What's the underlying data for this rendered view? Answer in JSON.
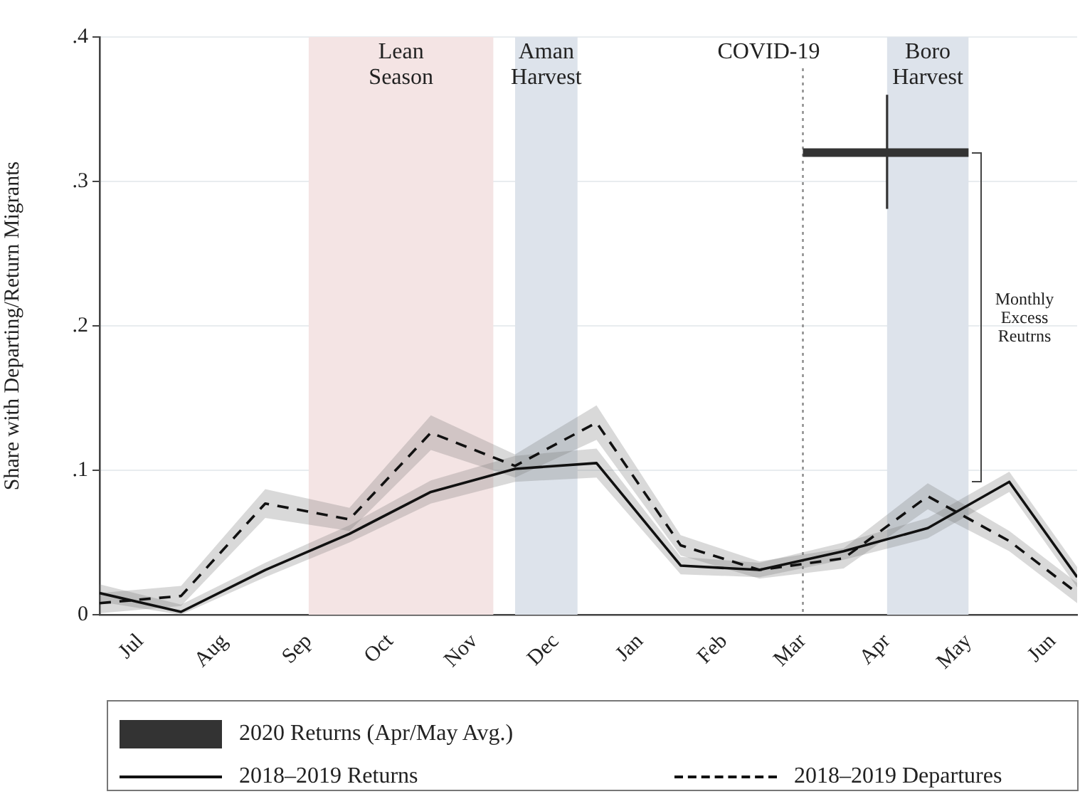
{
  "chart_data": {
    "type": "line",
    "ylabel": "Share with Departing/Return Migrants",
    "xlim": [
      "2019-06-16",
      "2020-06-10"
    ],
    "ylim": [
      0,
      0.4
    ],
    "xticks": [
      {
        "value": "2019-07-01",
        "label": "Jul"
      },
      {
        "value": "2019-08-01",
        "label": "Aug"
      },
      {
        "value": "2019-09-01",
        "label": "Sep"
      },
      {
        "value": "2019-10-01",
        "label": "Oct"
      },
      {
        "value": "2019-11-01",
        "label": "Nov"
      },
      {
        "value": "2019-12-01",
        "label": "Dec"
      },
      {
        "value": "2020-01-01",
        "label": "Jan"
      },
      {
        "value": "2020-02-01",
        "label": "Feb"
      },
      {
        "value": "2020-03-01",
        "label": "Mar"
      },
      {
        "value": "2020-04-01",
        "label": "Apr"
      },
      {
        "value": "2020-05-01",
        "label": "May"
      },
      {
        "value": "2020-06-01",
        "label": "Jun"
      }
    ],
    "yticks": [
      {
        "value": 0,
        "label": "0"
      },
      {
        "value": 0.1,
        "label": ".1"
      },
      {
        "value": 0.2,
        "label": ".2"
      },
      {
        "value": 0.3,
        "label": ".3"
      },
      {
        "value": 0.4,
        "label": ".4"
      }
    ],
    "x": [
      "2019-06-16",
      "2019-07-16",
      "2019-08-16",
      "2019-09-16",
      "2019-10-16",
      "2019-11-16",
      "2019-12-16",
      "2020-01-16",
      "2020-02-14",
      "2020-03-16",
      "2020-04-16",
      "2020-05-16",
      "2020-06-10"
    ],
    "series": [
      {
        "name": "2020 Returns (Apr/May Avg.)",
        "color": "#333333",
        "line_style": "solid",
        "x": [
          "2020-03-01",
          "2020-04-01",
          "2020-05-01"
        ],
        "values": [
          0.32,
          0.32,
          0.32
        ],
        "errors": [
          null,
          [
            0.281,
            0.36
          ],
          null
        ]
      },
      {
        "name": "2018–2019 Returns",
        "color": "#111111",
        "line_style": "solid",
        "values": [
          0.015,
          0.002,
          0.031,
          0.056,
          0.085,
          0.101,
          0.105,
          0.034,
          0.031,
          0.044,
          0.06,
          0.092,
          0.026
        ],
        "lower": [
          0.009,
          0,
          0.026,
          0.05,
          0.077,
          0.092,
          0.095,
          0.028,
          0.026,
          0.038,
          0.053,
          0.085,
          0.019
        ],
        "upper": [
          0.021,
          0.007,
          0.036,
          0.062,
          0.093,
          0.11,
          0.115,
          0.04,
          0.036,
          0.05,
          0.067,
          0.099,
          0.033
        ]
      },
      {
        "name": "2018–2019 Departures",
        "color": "#111111",
        "line_style": "dashed",
        "values": [
          0.008,
          0.013,
          0.077,
          0.066,
          0.126,
          0.103,
          0.133,
          0.048,
          0.031,
          0.039,
          0.082,
          0.051,
          0.015
        ],
        "lower": [
          0.001,
          0.006,
          0.067,
          0.058,
          0.114,
          0.095,
          0.121,
          0.041,
          0.025,
          0.032,
          0.073,
          0.044,
          0.008
        ],
        "upper": [
          0.015,
          0.02,
          0.087,
          0.074,
          0.138,
          0.111,
          0.145,
          0.055,
          0.037,
          0.046,
          0.091,
          0.058,
          0.022
        ]
      }
    ],
    "bands": [
      {
        "axis": "x",
        "from": "2019-09-01",
        "to": "2019-11-08",
        "label": "Lean Season",
        "color": "#f4e4e4"
      },
      {
        "axis": "x",
        "from": "2019-11-16",
        "to": "2019-12-09",
        "label": "Aman Harvest",
        "color": "#dde3eb"
      },
      {
        "axis": "x",
        "from": "2020-04-01",
        "to": "2020-05-01",
        "label": "Boro Harvest",
        "color": "#dde3eb"
      }
    ],
    "ref_lines": [
      {
        "axis": "x",
        "value": "2020-03-01",
        "label": "COVID-19",
        "color": "#888888",
        "line_style": "dotted"
      }
    ],
    "annotations": [
      "Monthly Excess Reutrns"
    ],
    "marker": "none",
    "grid": "y",
    "legend": "bottom"
  }
}
